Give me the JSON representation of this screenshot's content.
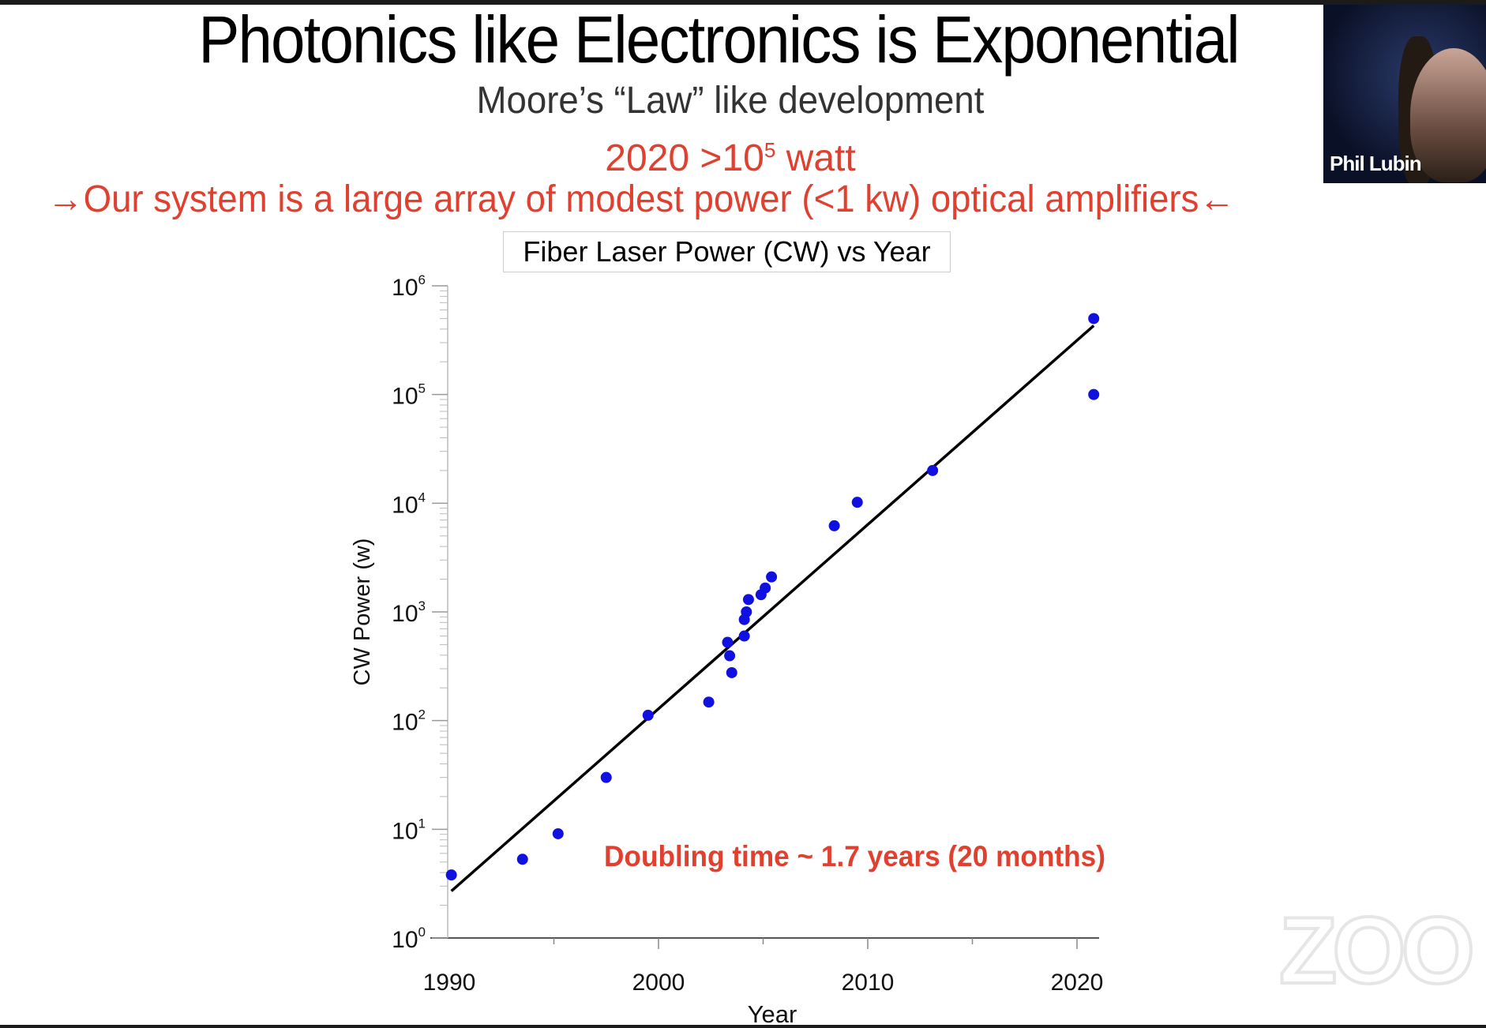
{
  "slide": {
    "title": "Photonics like Electronics is Exponential",
    "subtitle": "Moore’s “Law” like development",
    "highlight_prefix": "2020 >10",
    "highlight_exp": "5",
    "highlight_suffix": " watt",
    "statement": "Our system is a large array of modest power (<1 kw) optical amplifiers",
    "arrow_right": "→",
    "arrow_left": "←",
    "accent_color": "#e04030"
  },
  "webcam": {
    "participant_name": "Phil Lubin"
  },
  "watermark": "ZOOM",
  "chart_data": {
    "type": "scatter",
    "title": "Fiber Laser Power (CW) vs Year",
    "xlabel": "Year",
    "ylabel": "CW Power (w)",
    "xlim": [
      1990,
      2021
    ],
    "ylim": [
      1,
      1000000
    ],
    "yscale": "log",
    "x_ticks": [
      "1990",
      "2000",
      "2010",
      "2020"
    ],
    "y_ticks": [
      {
        "base": "10",
        "exp": "0"
      },
      {
        "base": "10",
        "exp": "1"
      },
      {
        "base": "10",
        "exp": "2"
      },
      {
        "base": "10",
        "exp": "3"
      },
      {
        "base": "10",
        "exp": "4"
      },
      {
        "base": "10",
        "exp": "5"
      },
      {
        "base": "10",
        "exp": "6"
      }
    ],
    "grid": false,
    "marker_color": "#1010e0",
    "points": [
      {
        "x": 1990.1,
        "y": 3.8
      },
      {
        "x": 1993.5,
        "y": 5.3
      },
      {
        "x": 1995.2,
        "y": 9.1
      },
      {
        "x": 1997.5,
        "y": 30
      },
      {
        "x": 1999.5,
        "y": 112
      },
      {
        "x": 2002.4,
        "y": 148
      },
      {
        "x": 2003.3,
        "y": 525
      },
      {
        "x": 2003.4,
        "y": 395
      },
      {
        "x": 2003.5,
        "y": 276
      },
      {
        "x": 2004.1,
        "y": 850
      },
      {
        "x": 2004.1,
        "y": 600
      },
      {
        "x": 2004.2,
        "y": 1000
      },
      {
        "x": 2004.3,
        "y": 1300
      },
      {
        "x": 2004.9,
        "y": 1440
      },
      {
        "x": 2005.1,
        "y": 1660
      },
      {
        "x": 2005.4,
        "y": 2100
      },
      {
        "x": 2008.4,
        "y": 6200
      },
      {
        "x": 2009.5,
        "y": 10200
      },
      {
        "x": 2013.1,
        "y": 20000
      },
      {
        "x": 2020.8,
        "y": 500000
      },
      {
        "x": 2020.8,
        "y": 100000
      }
    ],
    "fit_line": {
      "x": [
        1990.1,
        2020.8
      ],
      "y": [
        2.7,
        430000
      ],
      "color": "#000000"
    },
    "annotation": "Doubling time ~ 1.7 years (20 months)"
  }
}
